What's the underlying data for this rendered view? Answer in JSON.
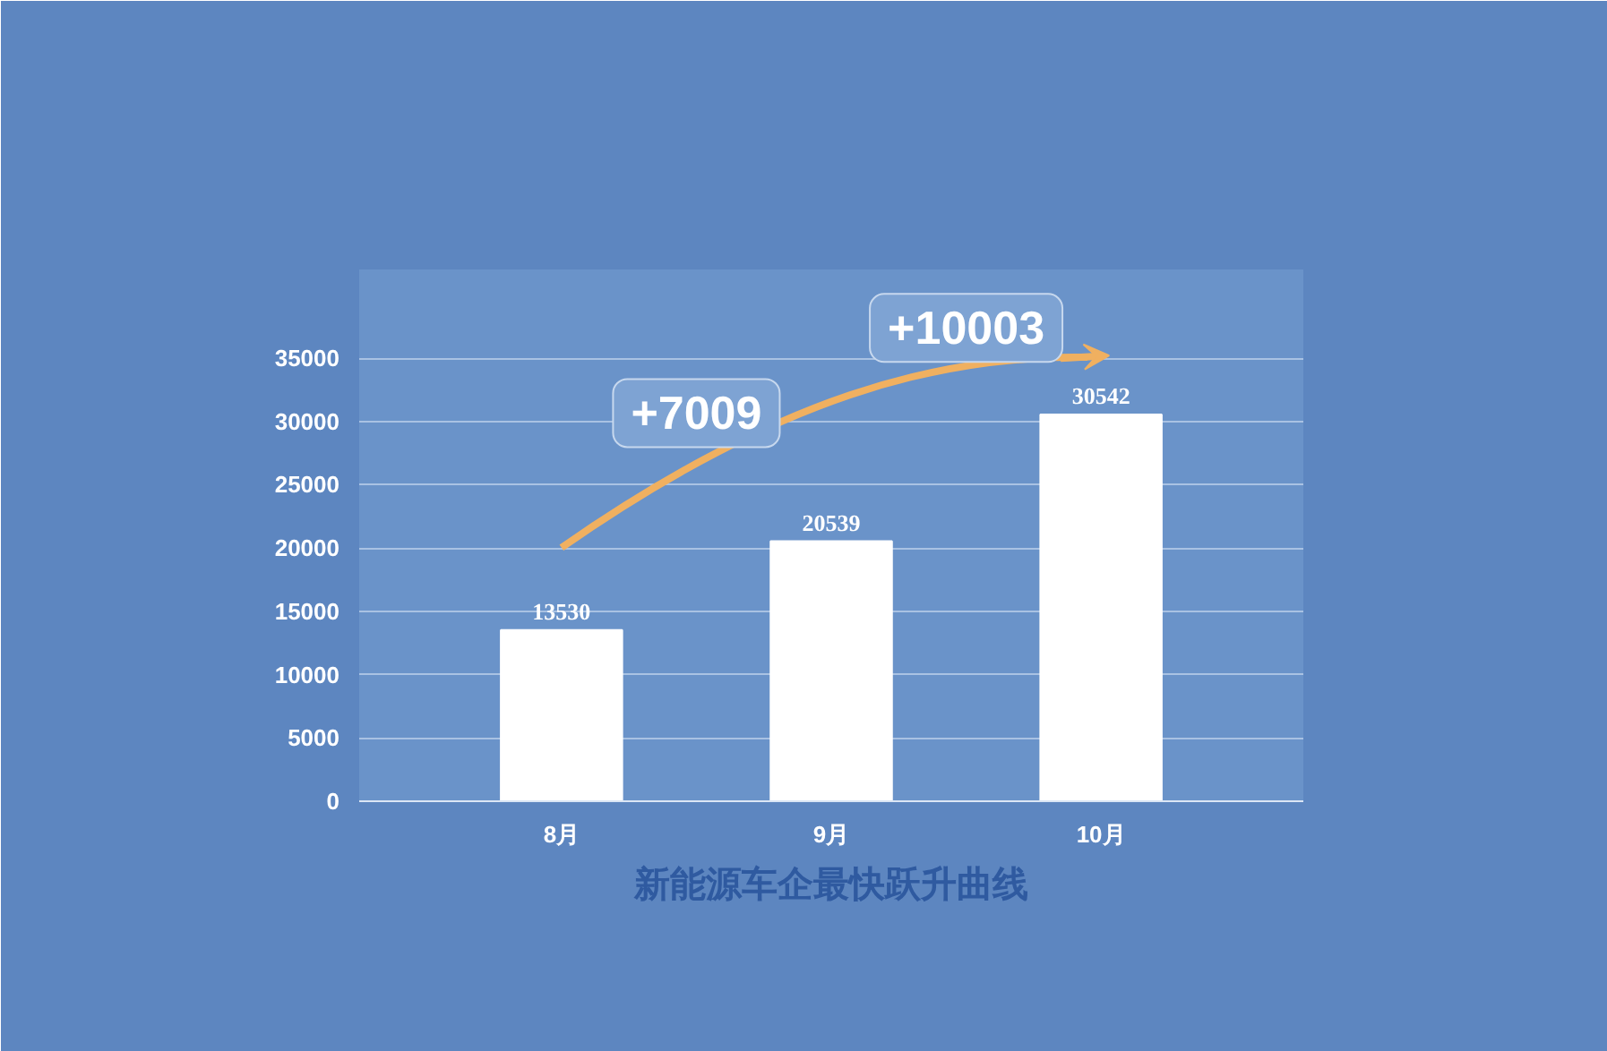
{
  "chart_data": {
    "type": "bar",
    "title": "新能源车企最快跃升曲线",
    "categories": [
      "8月",
      "9月",
      "10月"
    ],
    "values": [
      13530,
      20539,
      30542
    ],
    "color": "#ffffff",
    "data_labels": true,
    "ylim": [
      0,
      42000
    ],
    "yticks": [
      0,
      5000,
      10000,
      15000,
      20000,
      25000,
      30000,
      35000
    ],
    "grid": "y",
    "annotations": [
      "+7009",
      "+10003"
    ]
  }
}
